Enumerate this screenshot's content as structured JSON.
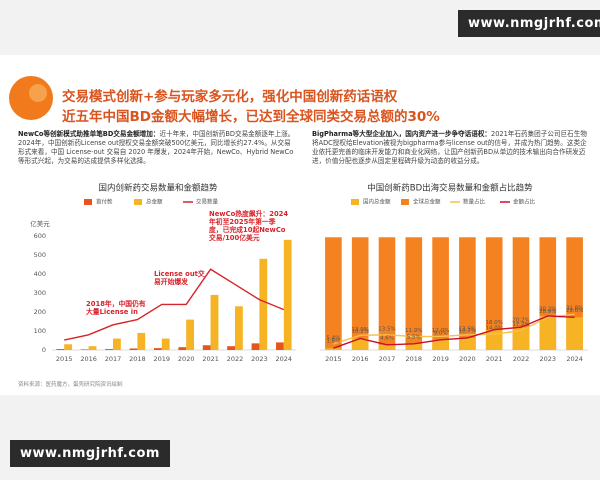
{
  "watermark": "www.nmgjrhf.com",
  "header": {
    "title_line1": "交易模式创新+参与玩家多元化，强化中国创新药话语权",
    "title_line2": "近五年中国BD金额大幅增长，已达到全球同类交易总额的30%"
  },
  "paragraphs": [
    {
      "lead": "NewCo等创新模式助推单笔BD交易金额增加：",
      "body": "近十年来，中国创新药BD交易金额逐年上涨。2024年，中国创新药License out授权交易金额突破500亿美元，同比增长约27.4%。从交易形式来看，中国 License-out 交易自 2020 年爆发，2024年开始，NewCo、Hybrid NewCo等形式兴起，为交易的达成提供多样化选择。"
    },
    {
      "lead": "BigPharma等大型企业加入，国内资产进一步争夺话语权：",
      "body": "2021年石药集团子公司巨石生物将ADC授权给Elevation被视为bigpharma参与license out的信号，并成为热门趋势。这类企业依托更完善的临床开发能力和商业化网络，让国产创新药BD从单边的技术输出向合作研发迈进，价值分配也逐步从固定里程碑升级为动态的收益分成。"
    }
  ],
  "source": "资料来源：医药魔方，蛋壳研究院资讯绘制",
  "chart_data": [
    {
      "type": "bar",
      "bar_mode": "grouped",
      "title": "国内创新药交易数量和金额趋势",
      "y_label": "亿美元",
      "categories": [
        "2015",
        "2016",
        "2017",
        "2018",
        "2019",
        "2020",
        "2021",
        "2022",
        "2023",
        "2024"
      ],
      "series": [
        {
          "name": "首付款",
          "color": "#e8541e",
          "values": [
            5,
            3,
            5,
            8,
            10,
            15,
            25,
            20,
            35,
            40
          ]
        },
        {
          "name": "总金额",
          "color": "#f6b323",
          "values": [
            30,
            20,
            60,
            90,
            60,
            160,
            290,
            230,
            480,
            580
          ]
        },
        {
          "name": "交易数量",
          "type": "line",
          "axis": "y2",
          "color": "#d8232a",
          "values": [
            21,
            32,
            53,
            64,
            96,
            96,
            170,
            138,
            106,
            85
          ]
        }
      ],
      "ylim": [
        0,
        600
      ],
      "yticks": [
        0,
        100,
        200,
        300,
        400,
        500,
        600
      ],
      "y2lim": [
        0,
        240
      ],
      "grid": false,
      "annotations": [
        "2018年，中国仍有大量License in",
        "License out交易开始爆发",
        "NewCo热度飙升：2024年初至2025年第一季度，已完成10起NewCo交易/100亿美元"
      ]
    },
    {
      "type": "bar",
      "bar_mode": "overlay",
      "title": "中国创新药BD出海交易数量和金额占比趋势",
      "categories": [
        "2015",
        "2016",
        "2017",
        "2018",
        "2019",
        "2020",
        "2021",
        "2022",
        "2023",
        "2024"
      ],
      "series": [
        {
          "name": "国内总金额",
          "color": "#f6b323",
          "values": [
            1.6,
            10.2,
            4.6,
            5.5,
            9.0,
            10.7,
            18.0,
            20.2,
            30.2,
            29.0
          ]
        },
        {
          "name": "全球总金额",
          "color": "#f58220",
          "values": [
            100,
            100,
            100,
            100,
            100,
            100,
            100,
            100,
            100,
            100
          ]
        },
        {
          "name": "数量占比",
          "type": "line",
          "color": "#f6c04a",
          "values": [
            5.4,
            13.0,
            13.5,
            11.9,
            12.0,
            13.5,
            14.0,
            17.2,
            28.9,
            31.8
          ],
          "value_labels": [
            "5.4%",
            "13.0%",
            "13.5%",
            "11.9%",
            "12.0%",
            "13.5%",
            "14.0%",
            "17.2%",
            "28.9%",
            "31.8%"
          ]
        },
        {
          "name": "金额占比",
          "type": "line",
          "color": "#c8102e",
          "values": [
            1.6,
            10.2,
            4.6,
            5.5,
            9.0,
            10.7,
            18.0,
            20.2,
            30.2,
            29.0
          ],
          "value_labels": [
            "1.6%",
            "10.2%",
            "4.6%",
            "5.5%",
            "9.0%",
            "10.7%",
            "18.0%",
            "20.2%",
            "30.2%",
            "29.0%"
          ]
        }
      ],
      "ylim": [
        0,
        110
      ],
      "grid": false
    }
  ]
}
